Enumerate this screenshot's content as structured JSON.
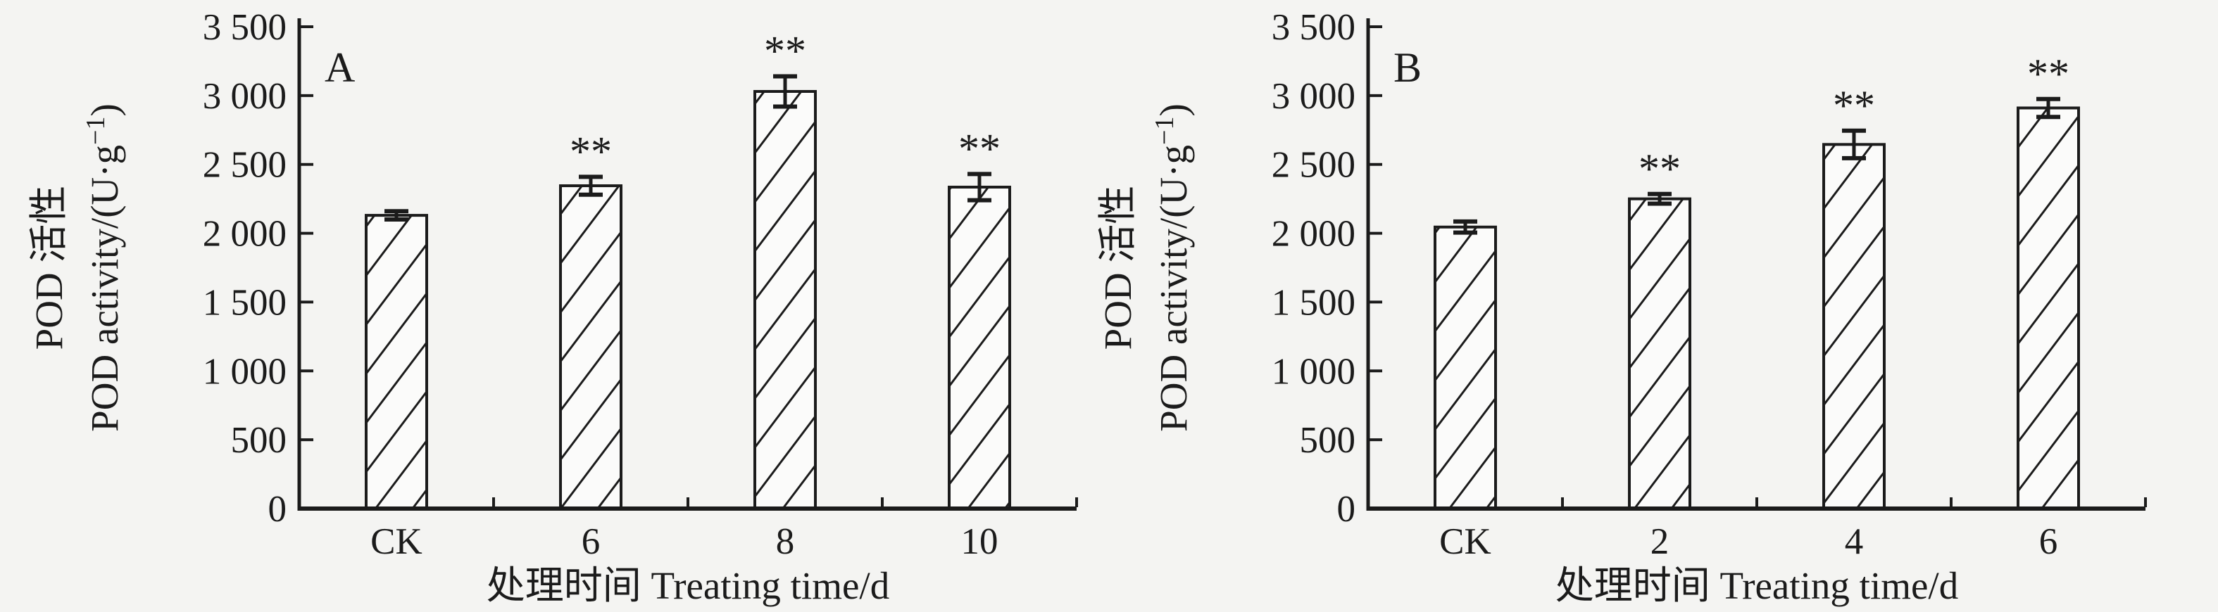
{
  "figure": {
    "background": "#f4f4f2",
    "ink": "#1b1b1b",
    "bar_fill": "#fbfbfa",
    "description": "Two-panel hatched bar chart of POD activity under different treating times"
  },
  "chart_data": [
    {
      "type": "bar",
      "panel_label": "A",
      "categories": [
        "CK",
        "6",
        "8",
        "10"
      ],
      "values": [
        2130,
        2345,
        3030,
        2335
      ],
      "errors": [
        30,
        65,
        110,
        95
      ],
      "significance": [
        "",
        "**",
        "**",
        "**"
      ],
      "title": "",
      "xlabel": "处理时间 Treating time/d",
      "ylabel_line1": "POD 活性",
      "ylabel_line2": "POD activity/(U·g⁻¹)",
      "ylim": [
        0,
        3500
      ],
      "ytick_step": 500,
      "ytick_labels": [
        "0",
        "500",
        "1 000",
        "1 500",
        "2 000",
        "2 500",
        "3 000",
        "3 500"
      ],
      "grid": "off",
      "legend": "none",
      "bar_style": "white fill, forward-diagonal hatch, black outline, error bars with caps"
    },
    {
      "type": "bar",
      "panel_label": "B",
      "categories": [
        "CK",
        "2",
        "4",
        "6"
      ],
      "values": [
        2045,
        2250,
        2645,
        2910
      ],
      "errors": [
        40,
        35,
        100,
        65
      ],
      "significance": [
        "",
        "**",
        "**",
        "**"
      ],
      "title": "",
      "xlabel": "处理时间 Treating time/d",
      "ylabel_line1": "POD 活性",
      "ylabel_line2": "POD activity/(U·g⁻¹)",
      "ylim": [
        0,
        3500
      ],
      "ytick_step": 500,
      "ytick_labels": [
        "0",
        "500",
        "1 000",
        "1 500",
        "2 000",
        "2 500",
        "3 000",
        "3 500"
      ],
      "grid": "off",
      "legend": "none",
      "bar_style": "white fill, forward-diagonal hatch, black outline, error bars with caps"
    }
  ]
}
